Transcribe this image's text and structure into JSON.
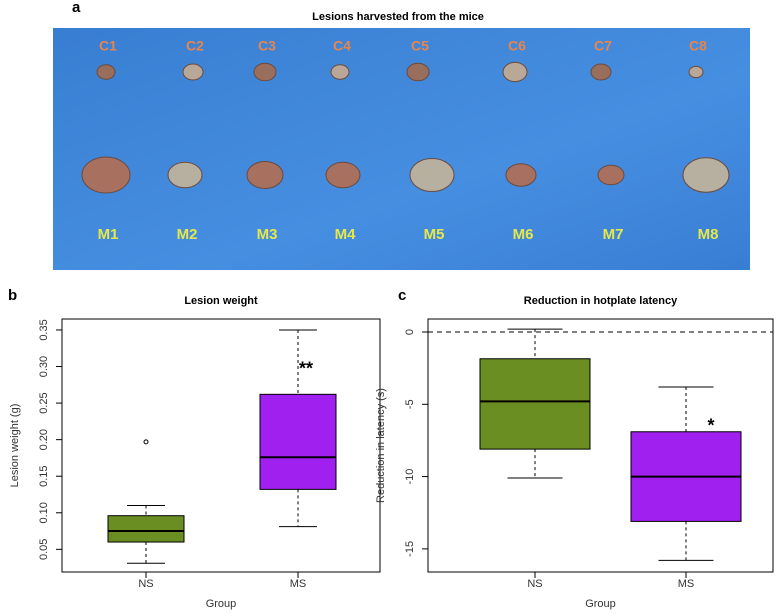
{
  "photo": {
    "panel_label": "a",
    "title": "Lesions harvested from the mice",
    "top_labels": [
      "C1",
      "C2",
      "C3",
      "C4",
      "C5",
      "C6",
      "C7",
      "C8"
    ],
    "bottom_labels": [
      "M1",
      "M2",
      "M3",
      "M4",
      "M5",
      "M6",
      "M7",
      "M8"
    ]
  },
  "chart_data": [
    {
      "type": "box",
      "panel_label": "b",
      "title": "Lesion weight",
      "ylabel": "Lesion weight (g)",
      "xlabel": "Group",
      "categories": [
        "NS",
        "MS"
      ],
      "boxes": [
        {
          "min": 0.031,
          "q1": 0.06,
          "median": 0.075,
          "q3": 0.096,
          "max": 0.11,
          "outliers": [
            0.197
          ],
          "color": "#6b8e23"
        },
        {
          "min": 0.081,
          "q1": 0.132,
          "median": 0.176,
          "q3": 0.262,
          "max": 0.35,
          "outliers": [],
          "color": "#a020f0"
        }
      ],
      "annotation": "**",
      "ylim": [
        0.019,
        0.365
      ],
      "yticks": [
        0.05,
        {
          "value": 0.1,
          "label": "0.10"
        },
        0.15,
        {
          "value": 0.2,
          "label": "0.20"
        },
        0.25,
        {
          "value": 0.3,
          "label": "0.30"
        },
        0.35
      ]
    },
    {
      "type": "box",
      "panel_label": "c",
      "title": "Reduction in hotplate latency",
      "ylabel": "Reduction in latency (s)",
      "xlabel": "Group",
      "categories": [
        "NS",
        "MS"
      ],
      "boxes": [
        {
          "min": -10.1,
          "q1": -8.1,
          "median": -4.8,
          "q3": -1.85,
          "max": 0.2,
          "outliers": [],
          "color": "#6b8e23"
        },
        {
          "min": -15.8,
          "q1": -13.1,
          "median": -10.0,
          "q3": -6.9,
          "max": -3.8,
          "outliers": [],
          "color": "#a020f0"
        }
      ],
      "annotation": "*",
      "hline": 0,
      "ylim": [
        -16.6,
        0.9
      ],
      "yticks": [
        0,
        -5,
        -10,
        -15
      ]
    }
  ]
}
